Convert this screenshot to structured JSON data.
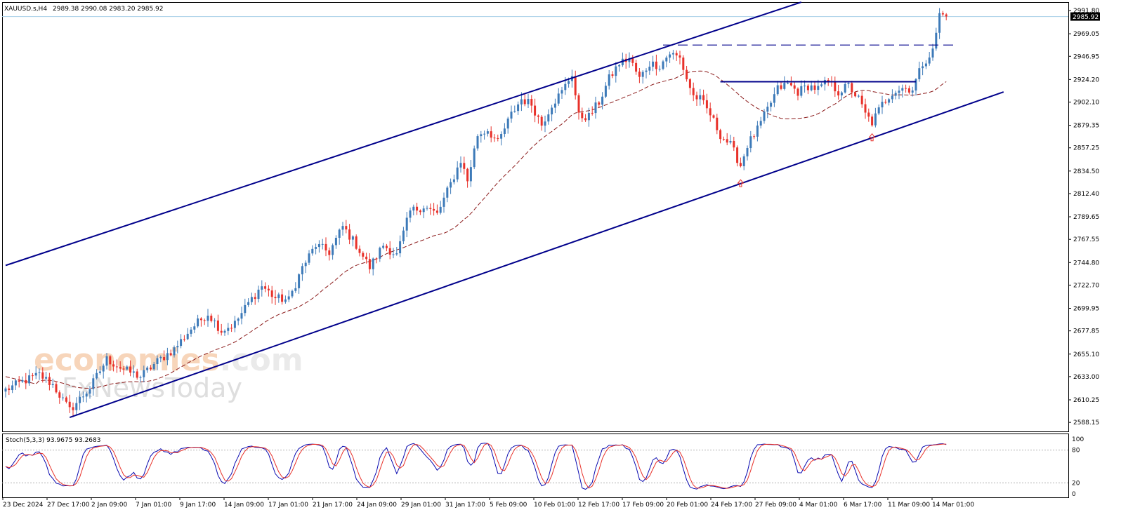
{
  "header": {
    "symbol_label": "XAUUSD.s,H4",
    "ohlc_label": "2989.38 2990.08 2983.20 2985.92"
  },
  "indicator": {
    "label": "Stoch(5,3,3) 93.9675 93.2683",
    "levels": [
      100,
      80,
      20,
      0
    ]
  },
  "watermark": {
    "line1a": "economies",
    "line1b": ".com",
    "line2": "FxNewsToday"
  },
  "colors": {
    "bull": "#3d7ab8",
    "bear": "#e8312a",
    "channel": "#00008b",
    "ma": "#8b1a1a",
    "stoch_main": "#0a0ab0",
    "stoch_signal": "#e8312a",
    "bid_line": "#a8cfe8",
    "arrow": "#e8312a"
  },
  "chart_data": {
    "type": "candlestick",
    "timeframe": "H4",
    "ylim": [
      2580,
      2998
    ],
    "price_ticks": [
      "2991.80",
      "2969.05",
      "2946.95",
      "2924.20",
      "2902.10",
      "2879.35",
      "2857.25",
      "2834.50",
      "2812.40",
      "2789.65",
      "2767.55",
      "2744.80",
      "2722.70",
      "2699.95",
      "2677.85",
      "2655.10",
      "2633.00",
      "2610.25",
      "2588.15"
    ],
    "current_price": "2985.92",
    "time_ticks": [
      "23 Dec 2024",
      "27 Dec 17:00",
      "2 Jan 09:00",
      "7 Jan 01:00",
      "9 Jan 17:00",
      "14 Jan 09:00",
      "17 Jan 01:00",
      "21 Jan 17:00",
      "24 Jan 09:00",
      "29 Jan 01:00",
      "31 Jan 17:00",
      "5 Feb 09:00",
      "10 Feb 01:00",
      "12 Feb 17:00",
      "17 Feb 09:00",
      "20 Feb 01:00",
      "24 Feb 17:00",
      "27 Feb 09:00",
      "4 Mar 01:00",
      "6 Mar 17:00",
      "11 Mar 09:00",
      "14 Mar 01:00"
    ],
    "close_path": [
      [
        0,
        2620
      ],
      [
        5,
        2628
      ],
      [
        10,
        2635
      ],
      [
        14,
        2625
      ],
      [
        19,
        2600
      ],
      [
        25,
        2622
      ],
      [
        30,
        2650
      ],
      [
        35,
        2640
      ],
      [
        40,
        2633
      ],
      [
        45,
        2648
      ],
      [
        50,
        2660
      ],
      [
        55,
        2680
      ],
      [
        60,
        2695
      ],
      [
        64,
        2678
      ],
      [
        68,
        2685
      ],
      [
        72,
        2705
      ],
      [
        76,
        2722
      ],
      [
        80,
        2710
      ],
      [
        84,
        2708
      ],
      [
        88,
        2740
      ],
      [
        92,
        2762
      ],
      [
        96,
        2755
      ],
      [
        100,
        2780
      ],
      [
        104,
        2762
      ],
      [
        108,
        2740
      ],
      [
        112,
        2762
      ],
      [
        116,
        2752
      ],
      [
        120,
        2795
      ],
      [
        124,
        2800
      ],
      [
        128,
        2792
      ],
      [
        132,
        2822
      ],
      [
        135,
        2845
      ],
      [
        137,
        2825
      ],
      [
        140,
        2870
      ],
      [
        143,
        2875
      ],
      [
        146,
        2862
      ],
      [
        150,
        2890
      ],
      [
        153,
        2905
      ],
      [
        156,
        2900
      ],
      [
        159,
        2880
      ],
      [
        162,
        2900
      ],
      [
        165,
        2912
      ],
      [
        168,
        2930
      ],
      [
        170,
        2888
      ],
      [
        173,
        2888
      ],
      [
        176,
        2902
      ],
      [
        179,
        2925
      ],
      [
        182,
        2940
      ],
      [
        185,
        2945
      ],
      [
        188,
        2925
      ],
      [
        191,
        2940
      ],
      [
        194,
        2938
      ],
      [
        197,
        2950
      ],
      [
        200,
        2945
      ],
      [
        202,
        2925
      ],
      [
        204,
        2908
      ],
      [
        206,
        2905
      ],
      [
        209,
        2890
      ],
      [
        212,
        2870
      ],
      [
        215,
        2860
      ],
      [
        218,
        2840
      ],
      [
        220,
        2860
      ],
      [
        223,
        2875
      ],
      [
        226,
        2895
      ],
      [
        229,
        2915
      ],
      [
        232,
        2920
      ],
      [
        235,
        2912
      ],
      [
        238,
        2918
      ],
      [
        241,
        2915
      ],
      [
        244,
        2922
      ],
      [
        247,
        2912
      ],
      [
        250,
        2918
      ],
      [
        253,
        2905
      ],
      [
        255,
        2890
      ],
      [
        257,
        2882
      ],
      [
        260,
        2900
      ],
      [
        263,
        2912
      ],
      [
        266,
        2916
      ],
      [
        269,
        2915
      ],
      [
        272,
        2940
      ],
      [
        275,
        2952
      ],
      [
        277,
        2988
      ],
      [
        279,
        2986
      ]
    ],
    "indicator_series": [
      "Stoch %K",
      "Stoch %D"
    ],
    "drawn_levels": {
      "resistance_dashed": 2958,
      "neckline_solid": 2922,
      "channel_upper": [
        [
          0,
          2742
        ],
        [
          236,
          3000
        ]
      ],
      "channel_lower": [
        [
          19,
          2593
        ],
        [
          296,
          2912
        ]
      ]
    },
    "grid": false
  }
}
